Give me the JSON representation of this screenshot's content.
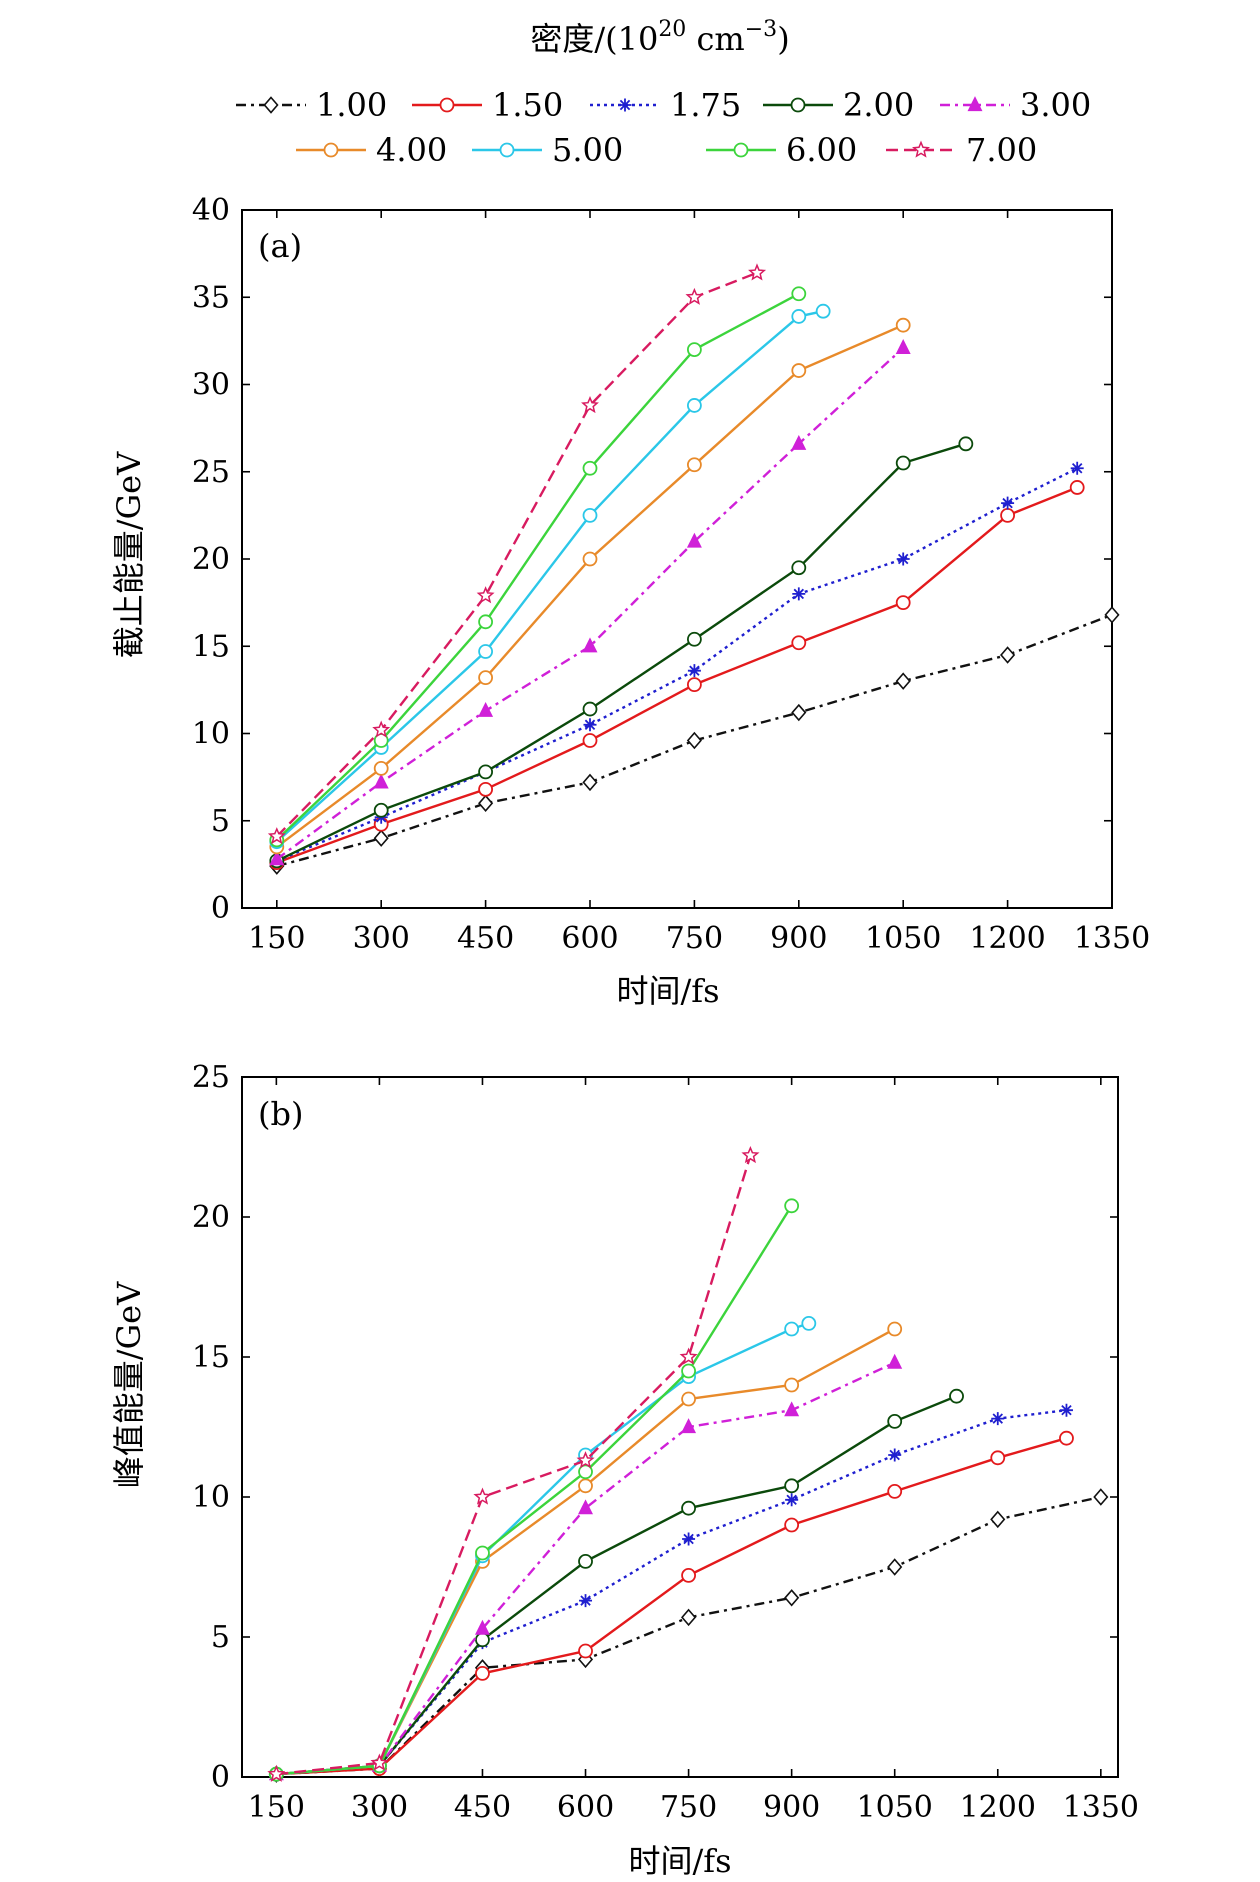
{
  "legend": {
    "title_prefix": "密度/(10",
    "title_sup": "20",
    "title_mid": " cm",
    "title_sup2": "−3",
    "title_suffix": ")",
    "entries": [
      {
        "label": "1.00",
        "color": "#111111",
        "dash": "10,5,3,5",
        "marker": "diamond"
      },
      {
        "label": "1.50",
        "color": "#e31a1c",
        "dash": "",
        "marker": "circle"
      },
      {
        "label": "1.75",
        "color": "#1f1fcf",
        "dash": "3,4",
        "marker": "star6"
      },
      {
        "label": "2.00",
        "color": "#0b4a0b",
        "dash": "",
        "marker": "circle"
      },
      {
        "label": "3.00",
        "color": "#d020d8",
        "dash": "10,5,3,5",
        "marker": "triangle"
      },
      {
        "label": "4.00",
        "color": "#e88a2a",
        "dash": "",
        "marker": "circle"
      },
      {
        "label": "5.00",
        "color": "#2bc7e8",
        "dash": "",
        "marker": "circle"
      },
      {
        "label": "6.00",
        "color": "#3cd43c",
        "dash": "",
        "marker": "circle"
      },
      {
        "label": "7.00",
        "color": "#d81b60",
        "dash": "12,6",
        "marker": "star5"
      }
    ]
  },
  "chart_data": [
    {
      "type": "line",
      "panel_label": "(a)",
      "xlabel": "时间/fs",
      "ylabel": "截止能量/GeV",
      "xlim": [
        100,
        1350
      ],
      "ylim": [
        0,
        40
      ],
      "xticks": [
        "150",
        "300",
        "450",
        "600",
        "750",
        "900",
        "1050",
        "1200",
        "1350"
      ],
      "yticks": [
        "0",
        "5",
        "10",
        "15",
        "20",
        "25",
        "30",
        "35",
        "40"
      ],
      "series": [
        {
          "name": "1.00",
          "x": [
            150,
            300,
            450,
            600,
            750,
            900,
            1050,
            1200,
            1350
          ],
          "y": [
            2.4,
            4.0,
            6.0,
            7.2,
            9.6,
            11.2,
            13.0,
            14.5,
            16.8
          ]
        },
        {
          "name": "1.50",
          "x": [
            150,
            300,
            450,
            600,
            750,
            900,
            1050,
            1200,
            1300
          ],
          "y": [
            2.6,
            4.8,
            6.8,
            9.6,
            12.8,
            15.2,
            17.5,
            22.5,
            24.1
          ]
        },
        {
          "name": "1.75",
          "x": [
            150,
            300,
            450,
            600,
            750,
            900,
            1050,
            1200,
            1300
          ],
          "y": [
            2.7,
            5.2,
            7.8,
            10.5,
            13.6,
            18.0,
            20.0,
            23.2,
            25.2
          ]
        },
        {
          "name": "2.00",
          "x": [
            150,
            300,
            450,
            600,
            750,
            900,
            1050,
            1140
          ],
          "y": [
            2.7,
            5.6,
            7.8,
            11.4,
            15.4,
            19.5,
            25.5,
            26.6
          ]
        },
        {
          "name": "3.00",
          "x": [
            150,
            300,
            450,
            600,
            750,
            900,
            1050
          ],
          "y": [
            2.8,
            7.2,
            11.3,
            15.0,
            21.0,
            26.6,
            32.1
          ]
        },
        {
          "name": "4.00",
          "x": [
            150,
            300,
            450,
            600,
            750,
            900,
            1050
          ],
          "y": [
            3.5,
            8.0,
            13.2,
            20.0,
            25.4,
            30.8,
            33.4
          ]
        },
        {
          "name": "5.00",
          "x": [
            150,
            300,
            450,
            600,
            750,
            900,
            935
          ],
          "y": [
            3.8,
            9.2,
            14.7,
            22.5,
            28.8,
            33.9,
            34.2
          ]
        },
        {
          "name": "6.00",
          "x": [
            150,
            300,
            450,
            600,
            750,
            900
          ],
          "y": [
            3.9,
            9.6,
            16.4,
            25.2,
            32.0,
            35.2
          ]
        },
        {
          "name": "7.00",
          "x": [
            150,
            300,
            450,
            600,
            750,
            840
          ],
          "y": [
            4.1,
            10.2,
            17.9,
            28.8,
            35.0,
            36.4
          ]
        }
      ]
    },
    {
      "type": "line",
      "panel_label": "(b)",
      "xlabel": "时间/fs",
      "ylabel": "峰值能量/GeV",
      "xlim": [
        100,
        1375
      ],
      "ylim": [
        0,
        25
      ],
      "xticks": [
        "150",
        "300",
        "450",
        "600",
        "750",
        "900",
        "1050",
        "1200",
        "1350"
      ],
      "yticks": [
        "0",
        "5",
        "10",
        "15",
        "20",
        "25"
      ],
      "series": [
        {
          "name": "1.00",
          "x": [
            150,
            300,
            450,
            600,
            750,
            900,
            1050,
            1200,
            1350
          ],
          "y": [
            0.1,
            0.3,
            3.9,
            4.2,
            5.7,
            6.4,
            7.5,
            9.2,
            10.0
          ]
        },
        {
          "name": "1.50",
          "x": [
            150,
            300,
            450,
            600,
            750,
            900,
            1050,
            1200,
            1300
          ],
          "y": [
            0.1,
            0.3,
            3.7,
            4.5,
            7.2,
            9.0,
            10.2,
            11.4,
            12.1
          ]
        },
        {
          "name": "1.75",
          "x": [
            150,
            300,
            450,
            600,
            750,
            900,
            1050,
            1200,
            1300
          ],
          "y": [
            0.1,
            0.4,
            4.8,
            6.3,
            8.5,
            9.9,
            11.5,
            12.8,
            13.1
          ]
        },
        {
          "name": "2.00",
          "x": [
            150,
            300,
            450,
            600,
            750,
            900,
            1050,
            1140
          ],
          "y": [
            0.1,
            0.4,
            4.9,
            7.7,
            9.6,
            10.4,
            12.7,
            13.6
          ]
        },
        {
          "name": "3.00",
          "x": [
            150,
            300,
            450,
            600,
            750,
            900,
            1050
          ],
          "y": [
            0.1,
            0.4,
            5.3,
            9.6,
            12.5,
            13.1,
            14.8
          ]
        },
        {
          "name": "4.00",
          "x": [
            150,
            300,
            450,
            600,
            750,
            900,
            1050
          ],
          "y": [
            0.1,
            0.4,
            7.7,
            10.4,
            13.5,
            14.0,
            16.0
          ]
        },
        {
          "name": "5.00",
          "x": [
            150,
            300,
            450,
            600,
            750,
            900,
            925
          ],
          "y": [
            0.1,
            0.4,
            7.9,
            11.5,
            14.3,
            16.0,
            16.2
          ]
        },
        {
          "name": "6.00",
          "x": [
            150,
            300,
            450,
            600,
            750,
            900
          ],
          "y": [
            0.1,
            0.4,
            8.0,
            10.9,
            14.5,
            20.4
          ]
        },
        {
          "name": "7.00",
          "x": [
            150,
            300,
            450,
            600,
            750,
            840
          ],
          "y": [
            0.1,
            0.5,
            10.0,
            11.3,
            15.0,
            22.2
          ]
        }
      ]
    }
  ]
}
